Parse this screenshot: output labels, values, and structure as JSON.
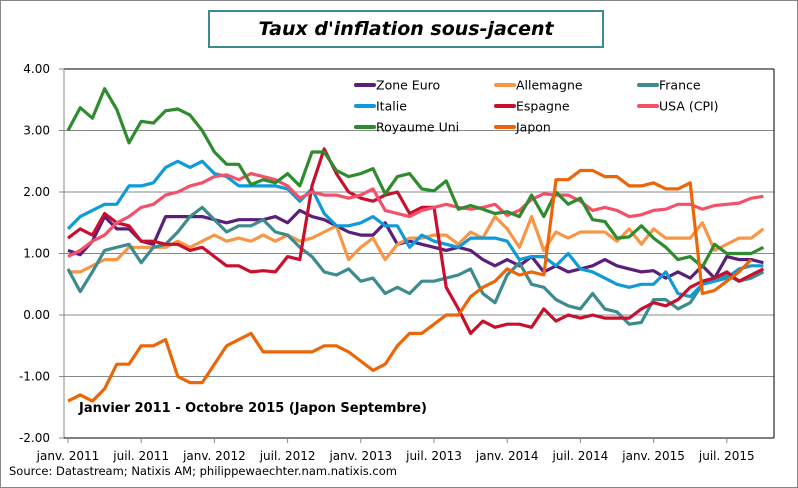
{
  "chart_data": {
    "type": "line",
    "title": "Taux d'inflation sous-jacent",
    "annotation": "Janvier 2011 - Octobre 2015 (Japon Septembre)",
    "source": "Source: Datastream; Natixis AM; philippewaechter.nam.natixis.com",
    "start": "2011-01",
    "frequency": "monthly",
    "ylim": [
      -2,
      4
    ],
    "yticks": [
      "4.00",
      "3.00",
      "2.00",
      "1.00",
      "0.00",
      "-1.00",
      "-2.00"
    ],
    "xticks": [
      "janv. 2011",
      "juil. 2011",
      "janv. 2012",
      "juil. 2012",
      "janv. 2013",
      "juil. 2013",
      "janv. 2014",
      "juil. 2014",
      "janv. 2015",
      "juil. 2015"
    ],
    "grid": true,
    "legend_position": "top-right",
    "series": [
      {
        "name": "Zone Euro",
        "color": "#5b1f7a",
        "values": [
          1.05,
          0.98,
          1.2,
          1.6,
          1.4,
          1.4,
          1.2,
          1.15,
          1.6,
          1.6,
          1.6,
          1.6,
          1.55,
          1.5,
          1.55,
          1.55,
          1.55,
          1.6,
          1.5,
          1.7,
          1.6,
          1.55,
          1.45,
          1.35,
          1.3,
          1.3,
          1.5,
          1.15,
          1.2,
          1.15,
          1.1,
          1.05,
          1.1,
          1.05,
          0.9,
          0.8,
          0.9,
          0.8,
          0.95,
          0.7,
          0.8,
          0.7,
          0.75,
          0.8,
          0.9,
          0.8,
          0.75,
          0.7,
          0.72,
          0.6,
          0.7,
          0.6,
          0.8,
          0.6,
          0.95,
          0.9,
          0.9,
          0.85
        ]
      },
      {
        "name": "Allemagne",
        "color": "#f79646",
        "values": [
          0.7,
          0.7,
          0.8,
          0.9,
          0.9,
          1.1,
          1.1,
          1.1,
          1.1,
          1.2,
          1.1,
          1.2,
          1.3,
          1.2,
          1.25,
          1.2,
          1.3,
          1.2,
          1.3,
          1.2,
          1.25,
          1.35,
          1.45,
          0.9,
          1.1,
          1.25,
          0.9,
          1.15,
          1.25,
          1.25,
          1.3,
          1.3,
          1.15,
          1.35,
          1.25,
          1.6,
          1.4,
          1.1,
          1.6,
          1.05,
          1.35,
          1.25,
          1.35,
          1.35,
          1.35,
          1.2,
          1.4,
          1.15,
          1.4,
          1.25,
          1.25,
          1.25,
          1.5,
          1.05,
          1.15,
          1.25,
          1.25,
          1.4
        ]
      },
      {
        "name": "France",
        "color": "#3b8b8f",
        "values": [
          0.75,
          0.38,
          0.7,
          1.05,
          1.1,
          1.15,
          0.85,
          1.1,
          1.15,
          1.35,
          1.6,
          1.75,
          1.55,
          1.35,
          1.45,
          1.45,
          1.55,
          1.35,
          1.3,
          1.1,
          0.95,
          0.7,
          0.65,
          0.75,
          0.55,
          0.6,
          0.35,
          0.45,
          0.35,
          0.55,
          0.55,
          0.6,
          0.65,
          0.75,
          0.35,
          0.2,
          0.65,
          0.85,
          0.5,
          0.45,
          0.25,
          0.15,
          0.1,
          0.35,
          0.1,
          0.05,
          -0.15,
          -0.12,
          0.25,
          0.25,
          0.1,
          0.2,
          0.5,
          0.6,
          0.65,
          0.55,
          0.6,
          0.7
        ]
      },
      {
        "name": "Italie",
        "color": "#0f9ad8",
        "values": [
          1.4,
          1.6,
          1.7,
          1.8,
          1.8,
          2.1,
          2.1,
          2.15,
          2.4,
          2.5,
          2.4,
          2.5,
          2.3,
          2.25,
          2.1,
          2.1,
          2.1,
          2.1,
          2.05,
          1.85,
          2.05,
          1.65,
          1.45,
          1.45,
          1.5,
          1.6,
          1.45,
          1.45,
          1.1,
          1.3,
          1.2,
          1.15,
          1.1,
          1.25,
          1.25,
          1.25,
          1.2,
          0.9,
          0.95,
          0.95,
          0.8,
          1.0,
          0.75,
          0.7,
          0.6,
          0.5,
          0.45,
          0.5,
          0.5,
          0.7,
          0.35,
          0.3,
          0.5,
          0.55,
          0.6,
          0.75,
          0.8,
          0.8
        ]
      },
      {
        "name": "Espagne",
        "color": "#c8102e",
        "values": [
          1.25,
          1.4,
          1.3,
          1.65,
          1.5,
          1.45,
          1.2,
          1.2,
          1.15,
          1.15,
          1.05,
          1.1,
          0.95,
          0.8,
          0.8,
          0.7,
          0.72,
          0.7,
          0.95,
          0.9,
          2.1,
          2.7,
          2.3,
          2.0,
          1.9,
          1.85,
          1.95,
          2.0,
          1.65,
          1.75,
          1.75,
          0.45,
          0.1,
          -0.3,
          -0.1,
          -0.2,
          -0.15,
          -0.15,
          -0.2,
          0.1,
          -0.1,
          0.0,
          -0.05,
          0.0,
          -0.05,
          -0.05,
          -0.05,
          0.1,
          0.2,
          0.15,
          0.25,
          0.45,
          0.55,
          0.6,
          0.7,
          0.55,
          0.65,
          0.75
        ]
      },
      {
        "name": "USA (CPI)",
        "color": "#f4506a",
        "values": [
          0.95,
          1.05,
          1.2,
          1.3,
          1.5,
          1.6,
          1.75,
          1.8,
          1.95,
          2.0,
          2.1,
          2.15,
          2.25,
          2.28,
          2.2,
          2.3,
          2.25,
          2.2,
          2.1,
          1.9,
          2.0,
          1.95,
          1.95,
          1.9,
          1.95,
          2.05,
          1.7,
          1.65,
          1.6,
          1.7,
          1.75,
          1.8,
          1.75,
          1.72,
          1.75,
          1.8,
          1.62,
          1.7,
          1.88,
          1.97,
          1.95,
          1.95,
          1.85,
          1.7,
          1.75,
          1.7,
          1.6,
          1.63,
          1.7,
          1.72,
          1.8,
          1.8,
          1.72,
          1.78,
          1.8,
          1.82,
          1.9,
          1.93
        ]
      },
      {
        "name": "Royaume Uni",
        "color": "#2e8b2e",
        "values": [
          3.0,
          3.37,
          3.2,
          3.68,
          3.34,
          2.8,
          3.15,
          3.12,
          3.32,
          3.35,
          3.25,
          3.0,
          2.65,
          2.45,
          2.45,
          2.12,
          2.2,
          2.15,
          2.3,
          2.1,
          2.65,
          2.65,
          2.35,
          2.25,
          2.3,
          2.38,
          1.97,
          2.25,
          2.3,
          2.05,
          2.02,
          2.18,
          1.72,
          1.78,
          1.72,
          1.65,
          1.68,
          1.6,
          1.95,
          1.6,
          2.0,
          1.8,
          1.9,
          1.55,
          1.52,
          1.25,
          1.27,
          1.45,
          1.25,
          1.1,
          0.9,
          0.95,
          0.78,
          1.15,
          1.0,
          1.0,
          1.0,
          1.1
        ]
      },
      {
        "name": "Japon",
        "color": "#ec6608",
        "values": [
          -1.4,
          -1.3,
          -1.4,
          -1.2,
          -0.8,
          -0.8,
          -0.5,
          -0.5,
          -0.4,
          -1.0,
          -1.1,
          -1.1,
          -0.8,
          -0.5,
          -0.4,
          -0.3,
          -0.6,
          -0.6,
          -0.6,
          -0.6,
          -0.6,
          -0.5,
          -0.5,
          -0.6,
          -0.75,
          -0.9,
          -0.8,
          -0.5,
          -0.3,
          -0.3,
          -0.15,
          0.0,
          0.0,
          0.3,
          0.45,
          0.55,
          0.75,
          0.65,
          0.7,
          0.65,
          2.2,
          2.2,
          2.35,
          2.35,
          2.25,
          2.25,
          2.1,
          2.1,
          2.15,
          2.05,
          2.05,
          2.15,
          0.35,
          0.4,
          0.55,
          0.7,
          0.9
        ]
      }
    ]
  }
}
